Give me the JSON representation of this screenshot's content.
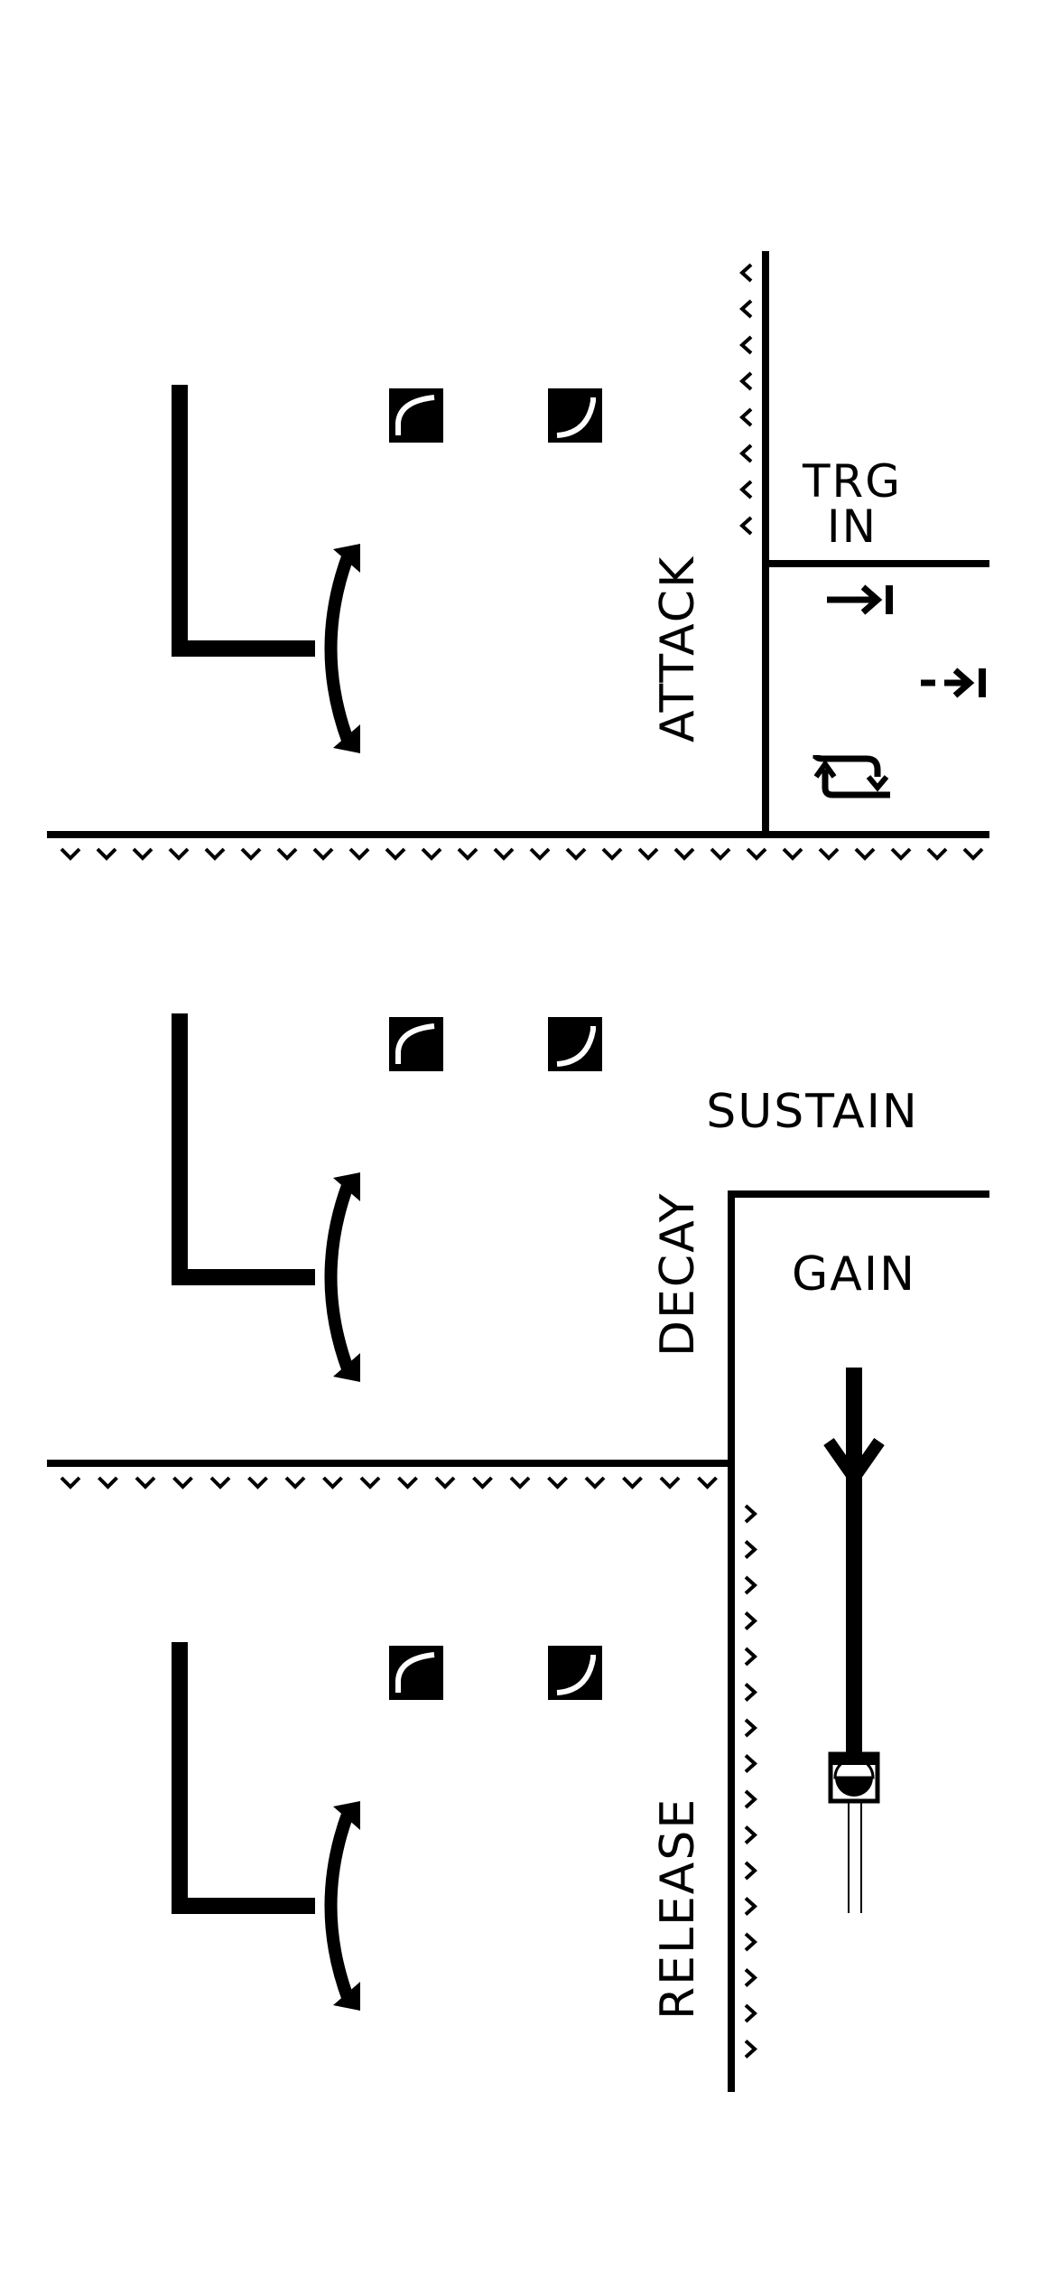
{
  "labels": {
    "attack": "ATTACK",
    "decay": "DECAY",
    "release": "RELEASE",
    "sustain": "SUSTAIN",
    "gain": "GAIN",
    "trg_in_line1": "TRG",
    "trg_in_line2": "IN"
  },
  "sections": [
    {
      "id": "attack",
      "shape_icons": [
        "curve-exponential-icon",
        "curve-logarithmic-icon"
      ],
      "knob_icon": "rotary-arc-icon"
    },
    {
      "id": "decay",
      "shape_icons": [
        "curve-exponential-icon",
        "curve-logarithmic-icon"
      ],
      "knob_icon": "rotary-arc-icon"
    },
    {
      "id": "release",
      "shape_icons": [
        "curve-exponential-icon",
        "curve-logarithmic-icon"
      ],
      "knob_icon": "rotary-arc-icon"
    }
  ],
  "trigger_modes": [
    "trigger-gate-icon",
    "trigger-dashed-icon",
    "trigger-loop-icon"
  ],
  "colors": {
    "ink": "#000000",
    "paper": "#ffffff"
  }
}
